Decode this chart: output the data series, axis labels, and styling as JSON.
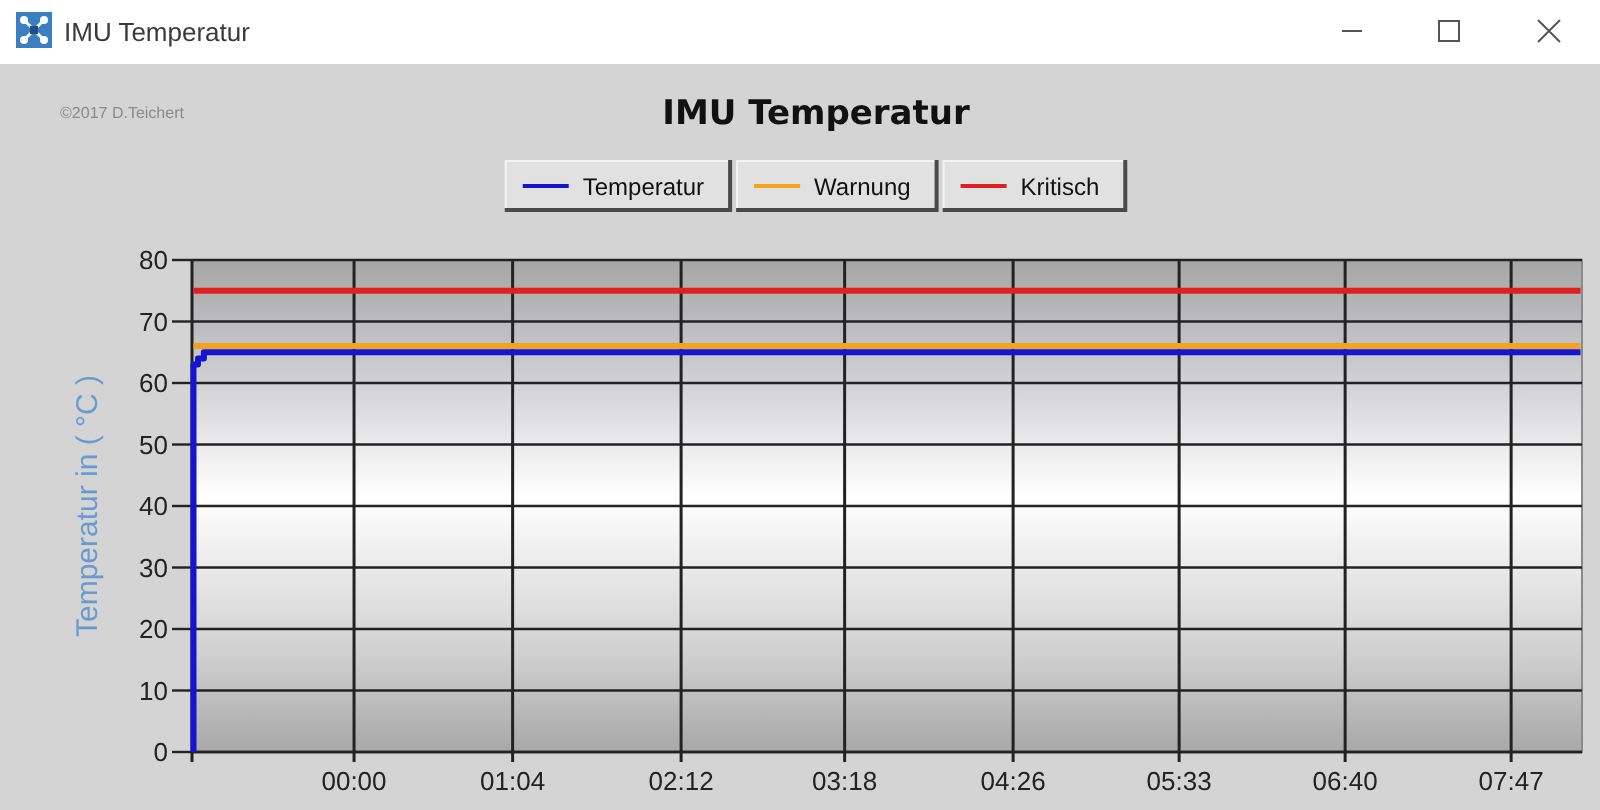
{
  "chart_data": {
    "type": "line",
    "title": "IMU Temperatur",
    "ylabel": "Temperatur in ( °C )",
    "annotations": [
      "IMU Temperatur",
      "©2017 D.Teichert"
    ],
    "series": [
      {
        "name": "Temperatur",
        "color": "#1414d2",
        "x": [
          -1.08,
          -1.08,
          -1.05,
          -1.05,
          -1.01,
          -1.01,
          8.25
        ],
        "values": [
          0,
          63,
          63,
          64,
          64,
          65,
          65
        ]
      },
      {
        "name": "Warnung",
        "color": "#f5a21e",
        "x": [
          -1.08,
          8.25
        ],
        "values": [
          66,
          66
        ]
      },
      {
        "name": "Kritisch",
        "color": "#e0201e",
        "x": [
          -1.08,
          8.25
        ],
        "values": [
          75,
          75
        ]
      }
    ],
    "xlim": [
      -1.09,
      8.26
    ],
    "xticks": [
      {
        "value": 0,
        "label": "00:00"
      },
      {
        "value": 1.0667,
        "label": "01:04"
      },
      {
        "value": 2.2,
        "label": "02:12"
      },
      {
        "value": 3.3,
        "label": "03:18"
      },
      {
        "value": 4.4333,
        "label": "04:26"
      },
      {
        "value": 5.55,
        "label": "05:33"
      },
      {
        "value": 6.6667,
        "label": "06:40"
      },
      {
        "value": 7.7833,
        "label": "07:47"
      }
    ],
    "ylim": [
      0,
      80
    ],
    "yticks": [
      0,
      10,
      20,
      30,
      40,
      50,
      60,
      70,
      80
    ],
    "grid": true,
    "legend": "top"
  }
}
